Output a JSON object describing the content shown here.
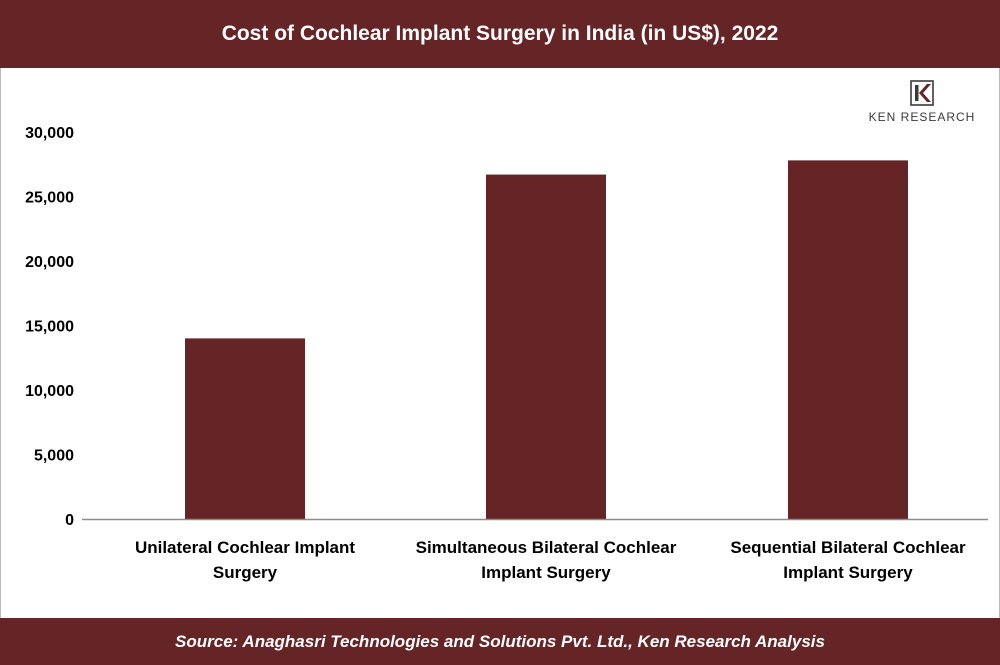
{
  "title": "Cost of Cochlear Implant Surgery in India (in US$), 2022",
  "source": "Source: Anaghasri Technologies and Solutions Pvt. Ltd., Ken Research Analysis",
  "logo": {
    "text": "KEN RESEARCH",
    "icon": "ken-research-logo-icon"
  },
  "colors": {
    "bar": "#652425",
    "header": "#652425",
    "axis": "#8c8c8c"
  },
  "chart_data": {
    "type": "bar",
    "categories": [
      "Unilateral Cochlear Implant Surgery",
      "Simultaneous Bilateral Cochlear Implant Surgery",
      "Sequential Bilateral Cochlear Implant Surgery"
    ],
    "category_lines": [
      [
        "Unilateral Cochlear Implant",
        "Surgery"
      ],
      [
        "Simultaneous Bilateral Cochlear",
        "Implant Surgery"
      ],
      [
        "Sequential Bilateral Cochlear",
        "Implant Surgery"
      ]
    ],
    "values": [
      14000,
      26700,
      27800
    ],
    "ylim": [
      0,
      30000
    ],
    "yticks": [
      0,
      5000,
      10000,
      15000,
      20000,
      25000,
      30000
    ],
    "ytick_labels": [
      "0",
      "5,000",
      "10,000",
      "15,000",
      "20,000",
      "25,000",
      "30,000"
    ],
    "xlabel": "",
    "ylabel": "",
    "grid": false,
    "legend": "none"
  }
}
